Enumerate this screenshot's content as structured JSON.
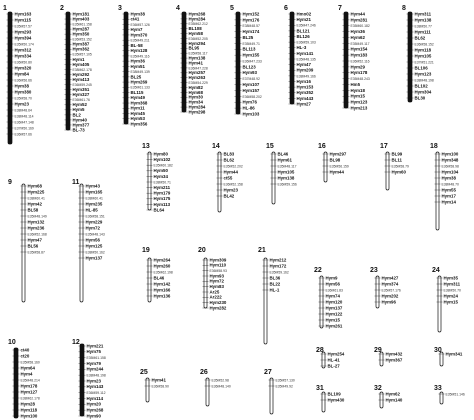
{
  "figure": {
    "linkage_groups": [
      {
        "id": "1",
        "bold_markers": [
          "Hym163",
          "Hym115",
          "Hym293",
          "Hym394",
          "Hym312",
          "Hym334",
          "Hym320",
          "Hym84",
          "Hym38",
          "Hym380",
          "Hym23"
        ],
        "light_markers": [
          "E35M57.57",
          "E35M50.174",
          "E36M50.80",
          "E36M56.66",
          "E35M58.70",
          "E38M48.64",
          "E38M48.114",
          "E36M47.148",
          "E37M50.169",
          "E36M57.66"
        ]
      },
      {
        "id": "2",
        "bold_markers": [
          "Hym181",
          "Hym403",
          "Hym287",
          "Hym350",
          "Hym387",
          "Hym362",
          "Hym1",
          "Hym405",
          "Hym292",
          "Hym413",
          "Hym351",
          "Hym327",
          "Hym52",
          "Hym5",
          "BL2",
          "Hym40",
          "Hym377",
          "BL-73"
        ],
        "light_markers": [
          "E35M61.158",
          "E36M53.152",
          "E35M57.105",
          "E38M62.178",
          "E36M59.245",
          "E36M61.76"
        ]
      },
      {
        "id": "3",
        "bold_markers": [
          "Hym38",
          "ct41",
          "Hym7",
          "Hym370",
          "BL-58",
          "Hym128",
          "Hym36",
          "Hym51",
          "BL25",
          "Hym269",
          "BL115",
          "Hym49",
          "Hym368",
          "Hym11",
          "Hym45",
          "Hym53",
          "Hym356"
        ],
        "light_markers": [
          "E36M57.126",
          "E35M49.211",
          "E35M49.116",
          "E38M49.139",
          "E35M61.133"
        ]
      },
      {
        "id": "4",
        "bold_markers": [
          "Hym268",
          "Hym284",
          "BL108",
          "Hym58",
          "Hym294",
          "BL95",
          "Hym138",
          "Hym41",
          "Hym257",
          "Hym263",
          "Hym82",
          "Hym68",
          "Hym30",
          "Hym34",
          "Hym284",
          "Hym298"
        ],
        "light_markers": [
          "E35M62.212",
          "E36M52.205",
          "E35M58.117",
          "E36M47.228",
          "E35M54.229"
        ]
      },
      {
        "id": "5",
        "bold_markers": [
          "Hym152",
          "Hym176",
          "Hym174",
          "BL25",
          "BL113",
          "Hym155",
          "BL123",
          "Hym93",
          "Hym107",
          "Hym157",
          "Hym76",
          "HL-86",
          "Hym103"
        ],
        "light_markers": [
          "E38M48.57",
          "E35M49.71",
          "E36M47.233",
          "E37M48.92",
          "E36M58.202"
        ]
      },
      {
        "id": "6",
        "bold_markers": [
          "Hmo02",
          "Hym21",
          "BL121",
          "BL126",
          "HL-3",
          "Hym141",
          "Hym47",
          "Hym209",
          "Hym16",
          "Hym153",
          "Hym352",
          "Hym443",
          "Hym27"
        ],
        "light_markers": [
          "E35M47.246",
          "E36M59.103",
          "E35M48.135",
          "E38M49.166"
        ]
      },
      {
        "id": "7",
        "bold_markers": [
          "Hym44",
          "Hym281",
          "Hym36",
          "Hym62",
          "Hym154",
          "Hym183",
          "Hym29",
          "Hym178",
          "Hm5",
          "Hym18",
          "Hym15",
          "Hym123",
          "Hym213"
        ],
        "light_markers": [
          "E35M60.182",
          "E35M49.117",
          "E36M52.116",
          "E35M48.243"
        ]
      },
      {
        "id": "8",
        "bold_markers": [
          "Hym311",
          "Hym138",
          "Hym111",
          "BL62",
          "Hym118",
          "Hym105",
          "BL106",
          "Hym123",
          "BL102",
          "Hym304",
          "BL30"
        ],
        "light_markers": [
          "E38M50.77",
          "E36M58.152",
          "E37M51.221",
          "E38M48.198"
        ]
      },
      {
        "id": "9",
        "bold_markers": [
          "Hym68",
          "Hym225",
          "Hym42",
          "BL58",
          "Hym132",
          "Hym236",
          "Hym47",
          "BL56"
        ],
        "light_markers": [
          "E38M60.41",
          "E35M48.149",
          "E36M52.168",
          "E35M58.87"
        ]
      },
      {
        "id": "10",
        "bold_markers": [
          "ct40",
          "ct20",
          "Hym64",
          "Hym4",
          "Hym178",
          "Hym127",
          "Hym28",
          "Hym118",
          "Hym100"
        ],
        "light_markers": [
          "E35M58.160",
          "E35M48.214",
          "E38M62.178"
        ]
      },
      {
        "id": "11",
        "bold_markers": [
          "Hym43",
          "Hym165",
          "Hym235",
          "HL-85",
          "Hym229",
          "Hym72",
          "Hym56",
          "Hym125",
          "Hym137"
        ],
        "light_markers": [
          "E38M60.41",
          "E36M58.151",
          "E35M48.143",
          "E38M50.162"
        ]
      },
      {
        "id": "12",
        "bold_markers": [
          "Hym221",
          "Hym75",
          "Hym79",
          "Hym244",
          "Hym23",
          "Hym143",
          "Hym114",
          "Hym20",
          "Hym268",
          "Hym90"
        ],
        "light_markers": [
          "E35M61.158",
          "E38M48.198",
          "E36M59.112"
        ]
      },
      {
        "id": "13",
        "bold_markers": [
          "Hym80",
          "Hym102",
          "Hym50",
          "Hym34",
          "Hym211",
          "Hym179",
          "Hym175",
          "Hym113",
          "BL64"
        ],
        "light_markers": [
          "E35M60.182",
          "E38M50.71"
        ]
      },
      {
        "id": "14",
        "bold_markers": [
          "BL83",
          "BL62",
          "Hym44",
          "ct55",
          "Hym23",
          "BL42"
        ],
        "light_markers": [
          "E35M52.202",
          "E36M52.158"
        ]
      },
      {
        "id": "15",
        "bold_markers": [
          "BL46",
          "Hym61",
          "Hym105",
          "Hym138"
        ],
        "light_markers": [
          "E35M48.117",
          "E36M59.156"
        ]
      },
      {
        "id": "16",
        "bold_markers": [
          "Hym297",
          "BL98",
          "Hym44"
        ],
        "light_markers": [
          "E35M56.159"
        ]
      },
      {
        "id": "17",
        "bold_markers": [
          "BL99",
          "BL11",
          "Hym60"
        ],
        "light_markers": [
          "E35M58.79"
        ]
      },
      {
        "id": "18",
        "bold_markers": [
          "Hym100",
          "Hym348",
          "Hym104",
          "Hym38",
          "Hym55",
          "Hym17",
          "Hym14"
        ],
        "light_markers": [
          "E36M58.98",
          "E38M48.70"
        ]
      },
      {
        "id": "19",
        "bold_markers": [
          "Hym264",
          "Hym260",
          "BL46",
          "Hym142",
          "Hym166",
          "Hym136"
        ],
        "light_markers": [
          "E35M62.198"
        ]
      },
      {
        "id": "20",
        "bold_markers": [
          "Hym309",
          "Hym110",
          "Hym93",
          "Hym72",
          "Hym83",
          "Ar25",
          "Ar222",
          "Hym230",
          "Hym282"
        ],
        "light_markers": [
          "E36M58.93"
        ]
      },
      {
        "id": "21",
        "bold_markers": [
          "Hym212",
          "Hym172",
          "BL36",
          "BL22",
          "HL-1"
        ],
        "light_markers": [
          "E35M59.162"
        ]
      },
      {
        "id": "22",
        "bold_markers": [
          "Hym9",
          "Hym56",
          "Hym74",
          "Hym120",
          "Hym137",
          "Hym122",
          "Hym15",
          "Hym261"
        ],
        "light_markers": [
          "E36M61.83"
        ]
      },
      {
        "id": "23",
        "bold_markers": [
          "Hym427",
          "Hym374",
          "Hym202",
          "Hym96"
        ],
        "light_markers": [
          "E35M57.176"
        ]
      },
      {
        "id": "24",
        "bold_markers": [
          "Hym35",
          "Hym311",
          "Hym24",
          "Hym15"
        ],
        "light_markers": [
          "E38M50.70"
        ]
      },
      {
        "id": "25",
        "bold_markers": [
          "Hym41"
        ],
        "light_markers": [
          "E36M58.90"
        ]
      },
      {
        "id": "26",
        "bold_markers": [],
        "light_markers": [
          "E35M52.98",
          "E36M48.140"
        ]
      },
      {
        "id": "27",
        "bold_markers": [],
        "light_markers": [
          "E35M57.130",
          "E35M49.92"
        ]
      },
      {
        "id": "28",
        "bold_markers": [
          "Hym254",
          "HL-41",
          "BL-27"
        ],
        "light_markers": []
      },
      {
        "id": "29",
        "bold_markers": [
          "Hym432",
          "Hym367"
        ],
        "light_markers": []
      },
      {
        "id": "30",
        "bold_markers": [
          "Hym341"
        ],
        "light_markers": []
      },
      {
        "id": "31",
        "bold_markers": [
          "BL109",
          "Hym430"
        ],
        "light_markers": []
      },
      {
        "id": "32",
        "bold_markers": [
          "Hym62",
          "Hym140"
        ],
        "light_markers": []
      },
      {
        "id": "33",
        "bold_markers": [],
        "light_markers": [
          "E35M51.146"
        ]
      }
    ]
  }
}
